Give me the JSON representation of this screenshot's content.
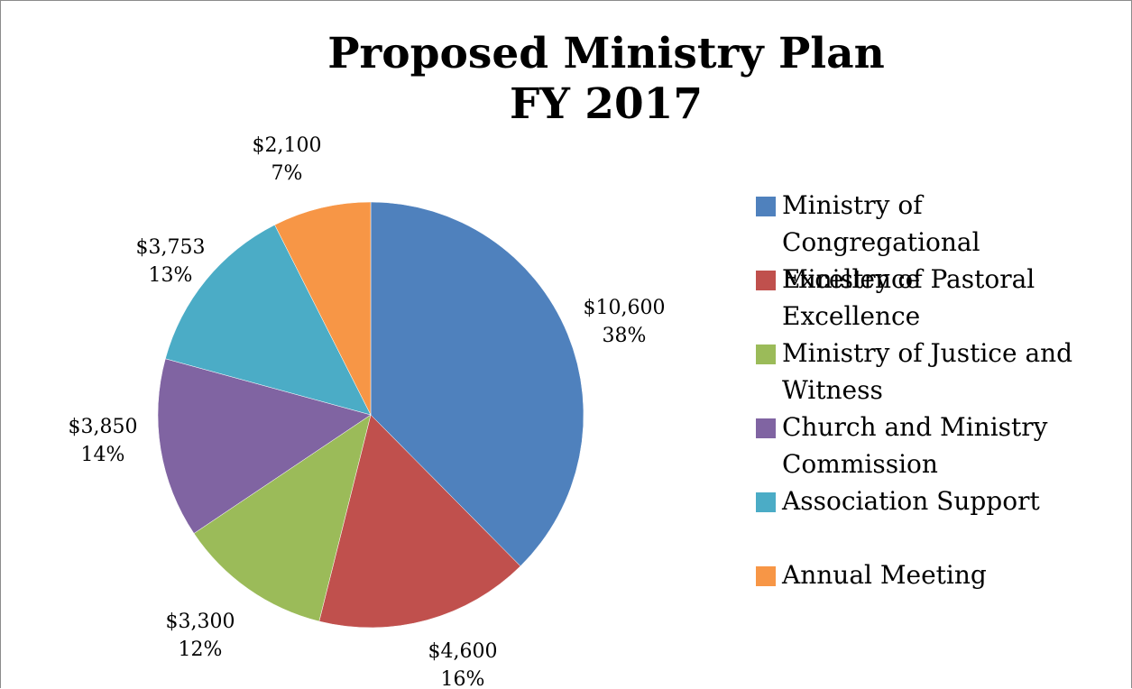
{
  "chart_data": {
    "type": "pie",
    "title": [
      "Proposed Ministry Plan",
      "FY 2017"
    ],
    "slices": [
      {
        "name": "Ministry of Congregational Excellence",
        "value": 10600,
        "value_label": "$10,600",
        "percent_label": "38%",
        "color": "#4F81BD"
      },
      {
        "name": "Ministry of Pastoral Excellence",
        "value": 4600,
        "value_label": "$4,600",
        "percent_label": "16%",
        "color": "#C0504D"
      },
      {
        "name": "Ministry of Justice and Witness",
        "value": 3300,
        "value_label": "$3,300",
        "percent_label": "12%",
        "color": "#9BBB59"
      },
      {
        "name": "Church and Ministry Commission",
        "value": 3850,
        "value_label": "$3,850",
        "percent_label": "14%",
        "color": "#8064A2"
      },
      {
        "name": "Association Support",
        "value": 3753,
        "value_label": "$3,753",
        "percent_label": "13%",
        "color": "#4BACC6"
      },
      {
        "name": "Annual Meeting",
        "value": 2100,
        "value_label": "$2,100",
        "percent_label": "7%",
        "color": "#F79646"
      }
    ],
    "start_angle": "12 o'clock",
    "direction": "clockwise",
    "legend_position": "right"
  }
}
